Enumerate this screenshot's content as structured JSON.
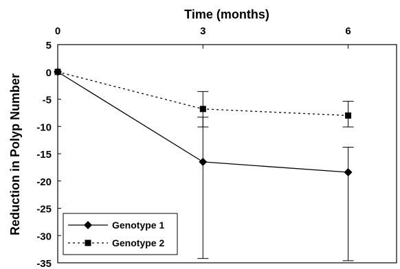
{
  "chart_data": {
    "type": "line",
    "title": "",
    "xlabel": "Time (months)",
    "ylabel": "Reduction in Polyp Number",
    "x": [
      0,
      3,
      6
    ],
    "x_ticks": [
      "0",
      "3",
      "6"
    ],
    "xlim": [
      0,
      7
    ],
    "ylim": [
      -35,
      5
    ],
    "y_ticks": [
      5,
      0,
      -5,
      -10,
      -15,
      -20,
      -25,
      -30,
      -35
    ],
    "grid": false,
    "legend_position": "bottom-left",
    "series": [
      {
        "name": "Genotype 1",
        "values": [
          0,
          -16.5,
          -18.4
        ],
        "error_high": [
          0,
          -8.3,
          -13.8
        ],
        "error_low": [
          0,
          -34.2,
          -34.6
        ],
        "line_style": "solid",
        "marker": "diamond",
        "color": "#000000"
      },
      {
        "name": "Genotype 2",
        "values": [
          0,
          -6.8,
          -8.0
        ],
        "error_high": [
          0,
          -3.6,
          -5.4
        ],
        "error_low": [
          0,
          -10.1,
          -10.1
        ],
        "line_style": "dotted",
        "marker": "square",
        "color": "#000000"
      }
    ]
  }
}
